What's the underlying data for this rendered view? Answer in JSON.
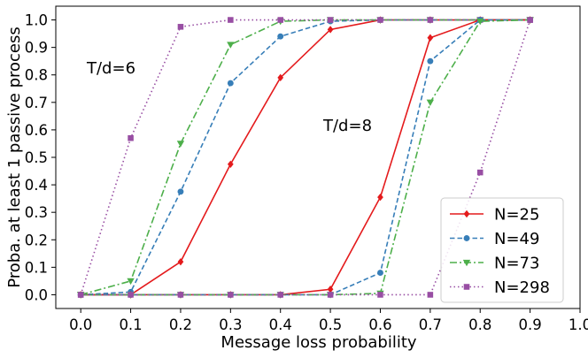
{
  "chart_data": {
    "type": "line",
    "xlabel": "Message loss probability",
    "ylabel": "Proba. at least 1 passive process",
    "xlim": [
      -0.05,
      1.0
    ],
    "ylim": [
      -0.05,
      1.05
    ],
    "xticks": [
      "0.0",
      "0.1",
      "0.2",
      "0.3",
      "0.4",
      "0.5",
      "0.6",
      "0.7",
      "0.8",
      "0.9",
      "1.0"
    ],
    "yticks": [
      "0.0",
      "0.1",
      "0.2",
      "0.3",
      "0.4",
      "0.5",
      "0.6",
      "0.7",
      "0.8",
      "0.9",
      "1.0"
    ],
    "grid": false,
    "legend_position": "lower-right",
    "annotations": [
      {
        "text": "T/d=6",
        "x": 0.02,
        "y": 0.8
      },
      {
        "text": "T/d=8",
        "x": 0.5,
        "y": 0.6
      }
    ],
    "series": [
      {
        "name": "N=25",
        "group": "T/d=6",
        "color": "#e41a1c",
        "dash": "solid",
        "marker": "diamond",
        "x": [
          0.0,
          0.1,
          0.2,
          0.3,
          0.4,
          0.5,
          0.6,
          0.7,
          0.8,
          0.9
        ],
        "y": [
          0.0,
          0.0,
          0.12,
          0.475,
          0.79,
          0.965,
          1.0,
          1.0,
          1.0,
          1.0
        ]
      },
      {
        "name": "N=49",
        "group": "T/d=6",
        "color": "#377eb8",
        "dash": "dashed",
        "marker": "circle",
        "x": [
          0.0,
          0.1,
          0.2,
          0.3,
          0.4,
          0.5,
          0.6,
          0.7,
          0.8,
          0.9
        ],
        "y": [
          0.0,
          0.01,
          0.375,
          0.77,
          0.94,
          0.995,
          1.0,
          1.0,
          1.0,
          1.0
        ]
      },
      {
        "name": "N=73",
        "group": "T/d=6",
        "color": "#4daf4a",
        "dash": "dashdot",
        "marker": "triangle-down",
        "x": [
          0.0,
          0.1,
          0.2,
          0.3,
          0.4,
          0.5,
          0.6,
          0.7,
          0.8,
          0.9
        ],
        "y": [
          0.0,
          0.05,
          0.55,
          0.91,
          0.995,
          1.0,
          1.0,
          1.0,
          1.0,
          1.0
        ]
      },
      {
        "name": "N=298",
        "group": "T/d=6",
        "color": "#984ea3",
        "dash": "dotted",
        "marker": "square",
        "x": [
          0.0,
          0.1,
          0.2,
          0.3,
          0.4,
          0.5,
          0.6,
          0.7,
          0.8,
          0.9
        ],
        "y": [
          0.0,
          0.57,
          0.975,
          1.0,
          1.0,
          1.0,
          1.0,
          1.0,
          1.0,
          1.0
        ]
      },
      {
        "name": "N=25",
        "group": "T/d=8",
        "color": "#e41a1c",
        "dash": "solid",
        "marker": "diamond",
        "x": [
          0.0,
          0.1,
          0.2,
          0.3,
          0.4,
          0.5,
          0.6,
          0.7,
          0.8,
          0.9
        ],
        "y": [
          0.0,
          0.0,
          0.0,
          0.0,
          0.0,
          0.02,
          0.355,
          0.935,
          1.0,
          1.0
        ]
      },
      {
        "name": "N=49",
        "group": "T/d=8",
        "color": "#377eb8",
        "dash": "dashed",
        "marker": "circle",
        "x": [
          0.0,
          0.1,
          0.2,
          0.3,
          0.4,
          0.5,
          0.6,
          0.7,
          0.8,
          0.9
        ],
        "y": [
          0.0,
          0.0,
          0.0,
          0.0,
          0.0,
          0.0,
          0.08,
          0.85,
          1.0,
          1.0
        ]
      },
      {
        "name": "N=73",
        "group": "T/d=8",
        "color": "#4daf4a",
        "dash": "dashdot",
        "marker": "triangle-down",
        "x": [
          0.0,
          0.1,
          0.2,
          0.3,
          0.4,
          0.5,
          0.6,
          0.7,
          0.8,
          0.9
        ],
        "y": [
          0.0,
          0.0,
          0.0,
          0.0,
          0.0,
          0.0,
          0.005,
          0.7,
          0.995,
          1.0
        ]
      },
      {
        "name": "N=298",
        "group": "T/d=8",
        "color": "#984ea3",
        "dash": "dotted",
        "marker": "square",
        "x": [
          0.0,
          0.1,
          0.2,
          0.3,
          0.4,
          0.5,
          0.6,
          0.7,
          0.8,
          0.9
        ],
        "y": [
          0.0,
          0.0,
          0.0,
          0.0,
          0.0,
          0.0,
          0.0,
          0.0,
          0.445,
          1.0
        ]
      }
    ],
    "legend": [
      {
        "label": "N=25",
        "color": "#e41a1c",
        "dash": "solid",
        "marker": "diamond"
      },
      {
        "label": "N=49",
        "color": "#377eb8",
        "dash": "dashed",
        "marker": "circle"
      },
      {
        "label": "N=73",
        "color": "#4daf4a",
        "dash": "dashdot",
        "marker": "triangle-down"
      },
      {
        "label": "N=298",
        "color": "#984ea3",
        "dash": "dotted",
        "marker": "square"
      }
    ]
  }
}
